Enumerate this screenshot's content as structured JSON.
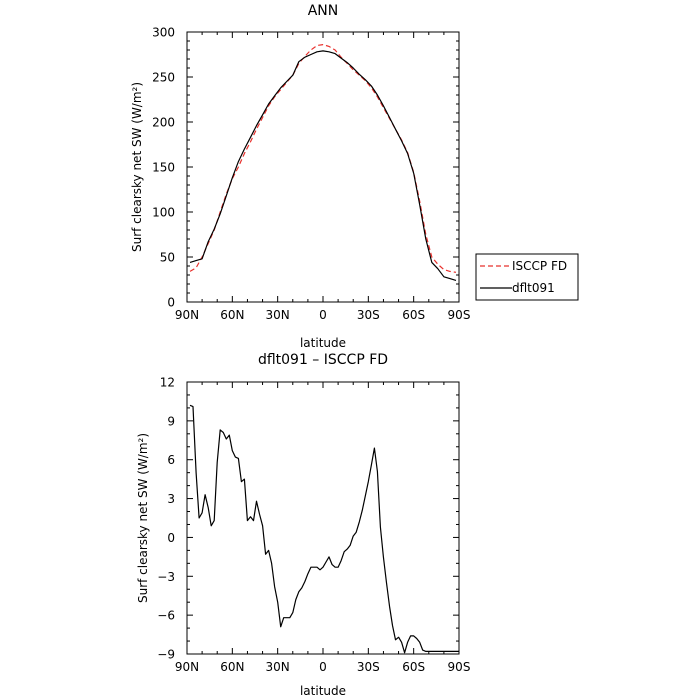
{
  "chart_data": [
    {
      "type": "line",
      "title": "ANN",
      "xlabel": "latitude",
      "ylabel": "Surf clearsky net SW (W/m²)",
      "xlim": [
        90,
        -90
      ],
      "ylim": [
        0,
        300
      ],
      "x_ticks": [
        90,
        60,
        30,
        0,
        -30,
        -60,
        -90
      ],
      "x_tick_labels": [
        "90N",
        "60N",
        "30N",
        "0",
        "30S",
        "60S",
        "90S"
      ],
      "y_ticks": [
        0,
        50,
        100,
        150,
        200,
        250,
        300
      ],
      "y_tick_labels": [
        "0",
        "50",
        "100",
        "150",
        "200",
        "250",
        "300"
      ],
      "legend_position": "outside-right",
      "series": [
        {
          "name": "ISCCP FD",
          "color": "#e8302c",
          "dash": "dashed",
          "x": [
            88,
            84,
            80,
            76,
            72,
            68,
            64,
            60,
            56,
            52,
            48,
            44,
            40,
            36,
            32,
            28,
            24,
            20,
            16,
            12,
            8,
            4,
            0,
            -4,
            -8,
            -12,
            -16,
            -20,
            -24,
            -28,
            -32,
            -36,
            -40,
            -44,
            -48,
            -52,
            -56,
            -60,
            -64,
            -68,
            -72,
            -76,
            -80,
            -84,
            -88
          ],
          "y": [
            34,
            38,
            50,
            65,
            80,
            100,
            120,
            137,
            150,
            165,
            178,
            192,
            205,
            218,
            228,
            236,
            244,
            252,
            265,
            273,
            280,
            285,
            286,
            284,
            280,
            272,
            265,
            258,
            252,
            246,
            238,
            228,
            216,
            204,
            192,
            180,
            166,
            144,
            112,
            75,
            50,
            42,
            36,
            34,
            33
          ]
        },
        {
          "name": "dflt091",
          "color": "#000000",
          "dash": "solid",
          "x": [
            88,
            84,
            80,
            76,
            72,
            68,
            64,
            60,
            56,
            52,
            48,
            44,
            40,
            36,
            32,
            28,
            24,
            20,
            16,
            12,
            8,
            4,
            0,
            -4,
            -8,
            -12,
            -16,
            -20,
            -24,
            -28,
            -32,
            -36,
            -40,
            -44,
            -48,
            -52,
            -56,
            -60,
            -64,
            -68,
            -72,
            -76,
            -80,
            -84,
            -88
          ],
          "y": [
            44,
            46,
            48,
            67,
            81,
            98,
            118,
            138,
            156,
            170,
            183,
            196,
            208,
            220,
            229,
            238,
            245,
            252,
            267,
            272,
            275,
            278,
            279,
            278,
            276,
            271,
            266,
            260,
            253,
            247,
            240,
            230,
            218,
            205,
            192,
            179,
            165,
            143,
            108,
            70,
            44,
            37,
            28,
            26,
            24
          ]
        }
      ]
    },
    {
      "type": "line",
      "title": "dflt091 – ISCCP FD",
      "xlabel": "latitude",
      "ylabel": "Surf clearsky net SW (W/m²)",
      "xlim": [
        90,
        -90
      ],
      "ylim": [
        -9,
        12
      ],
      "x_ticks": [
        90,
        60,
        30,
        0,
        -30,
        -60,
        -90
      ],
      "x_tick_labels": [
        "90N",
        "60N",
        "30N",
        "0",
        "30S",
        "60S",
        "90S"
      ],
      "y_ticks": [
        -9,
        -6,
        -3,
        0,
        3,
        6,
        9,
        12
      ],
      "y_tick_labels": [
        "−9",
        "−6",
        "−3",
        "0",
        "3",
        "6",
        "9",
        "12"
      ],
      "series": [
        {
          "color": "#000000",
          "dash": "solid",
          "x": [
            88,
            86,
            84,
            82,
            80,
            78,
            76,
            74,
            72,
            70,
            68,
            66,
            64,
            62,
            60,
            58,
            56,
            54,
            52,
            50,
            48,
            46,
            44,
            42,
            40,
            38,
            36,
            34,
            32,
            30,
            28,
            26,
            24,
            22,
            20,
            18,
            16,
            14,
            12,
            10,
            8,
            6,
            4,
            2,
            0,
            -2,
            -4,
            -6,
            -8,
            -10,
            -12,
            -14,
            -16,
            -18,
            -20,
            -22,
            -24,
            -26,
            -28,
            -30,
            -32,
            -34,
            -36,
            -38,
            -40,
            -42,
            -44,
            -46,
            -48,
            -50,
            -52,
            -54,
            -56,
            -58,
            -60,
            -62,
            -64,
            -66,
            -68,
            -70,
            -72,
            -74,
            -76,
            -78,
            -80,
            -82,
            -84,
            -86,
            -88,
            -90
          ],
          "y": [
            10.2,
            10.1,
            5,
            1.5,
            1.9,
            3.3,
            2.3,
            0.9,
            1.3,
            5.8,
            8.3,
            8.1,
            7.6,
            7.9,
            6.7,
            6.2,
            6.1,
            4.3,
            4.5,
            1.3,
            1.6,
            1.3,
            2.8,
            1.8,
            0.9,
            -1.3,
            -1,
            -2,
            -3.8,
            -5,
            -6.9,
            -6.2,
            -6.2,
            -6.2,
            -5.8,
            -4.8,
            -4.2,
            -3.9,
            -3.4,
            -2.8,
            -2.3,
            -2.3,
            -2.3,
            -2.5,
            -2.3,
            -1.9,
            -1.5,
            -2.1,
            -2.3,
            -2.3,
            -1.8,
            -1.1,
            -0.9,
            -0.6,
            0.1,
            0.4,
            1.2,
            2.1,
            3.2,
            4.3,
            5.6,
            6.9,
            5.1,
            0.8,
            -1.5,
            -3.5,
            -5.3,
            -6.8,
            -7.9,
            -7.7,
            -8.1,
            -8.9,
            -8.1,
            -7.6,
            -7.6,
            -7.8,
            -8.1,
            -8.7,
            -8.8,
            -8.8,
            -8.8,
            -8.8,
            -8.8,
            -8.8,
            -8.8,
            -8.8,
            -8.8,
            -8.8,
            -8.8,
            -8.8
          ]
        }
      ]
    }
  ]
}
